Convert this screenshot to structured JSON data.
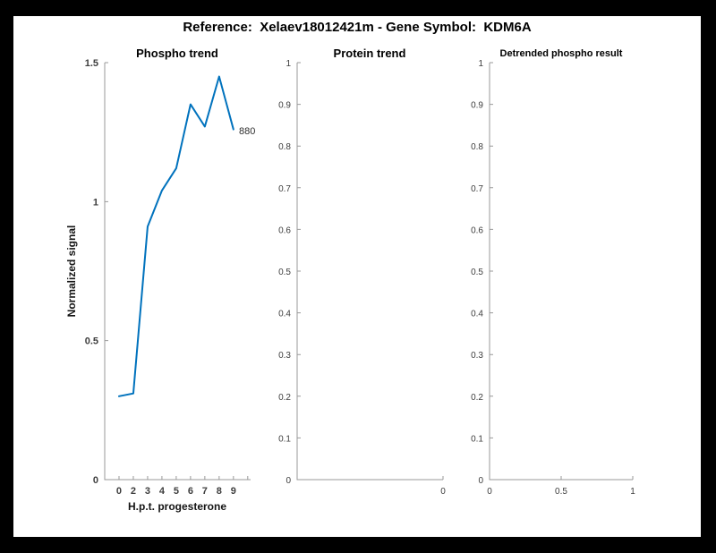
{
  "header": {
    "title": "Reference:  Xelaev18012421m - Gene Symbol:  KDM6A"
  },
  "chart_data": [
    {
      "id": "phospho-trend",
      "type": "line",
      "title": "Phospho trend",
      "xlabel": "H.p.t. progesterone",
      "ylabel": "Normalized signal",
      "line_color": "#0072BD",
      "grid": false,
      "legend": null,
      "xlim": [
        0,
        10.2
      ],
      "ylim": [
        0,
        1.5
      ],
      "x_ticks": {
        "values": [
          1,
          2,
          3,
          4,
          5,
          6,
          7,
          8,
          9,
          10
        ],
        "labels": [
          "0",
          "2",
          "3",
          "4",
          "5",
          "6",
          "7",
          "8",
          "9",
          ""
        ]
      },
      "y_ticks": {
        "values": [
          0,
          0.5,
          1,
          1.5
        ],
        "labels": [
          "0",
          "0.5",
          "1",
          "1.5"
        ]
      },
      "points": {
        "x": [
          1,
          2,
          3,
          4,
          5,
          6,
          7,
          8,
          9
        ],
        "x_labels": [
          "0",
          "2",
          "3",
          "4",
          "5",
          "6",
          "7",
          "8",
          "9"
        ],
        "y": [
          0.3,
          0.31,
          0.91,
          1.04,
          1.12,
          1.35,
          1.27,
          1.45,
          1.26
        ]
      },
      "annotation": "880"
    },
    {
      "id": "protein-trend",
      "type": "line",
      "title": "Protein trend",
      "xlabel": "",
      "ylabel": "",
      "line_color": "#0072BD",
      "grid": false,
      "legend": null,
      "xlim": [
        -1,
        0
      ],
      "ylim": [
        0,
        1
      ],
      "x_ticks": {
        "values": [
          0
        ],
        "labels": [
          "0"
        ]
      },
      "y_ticks": {
        "values": [
          0,
          0.1,
          0.2,
          0.3,
          0.4,
          0.5,
          0.6,
          0.7,
          0.8,
          0.9,
          1
        ],
        "labels": [
          "0",
          "0.1",
          "0.2",
          "0.3",
          "0.4",
          "0.5",
          "0.6",
          "0.7",
          "0.8",
          "0.9",
          "1"
        ]
      },
      "points": {
        "x": [],
        "y": []
      }
    },
    {
      "id": "detrended-phospho-result",
      "type": "line",
      "title": "Detrended phospho result",
      "xlabel": "",
      "ylabel": "",
      "line_color": "#0072BD",
      "grid": false,
      "legend": null,
      "xlim": [
        0,
        1
      ],
      "ylim": [
        0,
        1
      ],
      "x_ticks": {
        "values": [
          0,
          0.5,
          1
        ],
        "labels": [
          "0",
          "0.5",
          "1"
        ]
      },
      "y_ticks": {
        "values": [
          0,
          0.1,
          0.2,
          0.3,
          0.4,
          0.5,
          0.6,
          0.7,
          0.8,
          0.9,
          1
        ],
        "labels": [
          "0",
          "0.1",
          "0.2",
          "0.3",
          "0.4",
          "0.5",
          "0.6",
          "0.7",
          "0.8",
          "0.9",
          "1"
        ]
      },
      "points": {
        "x": [],
        "y": []
      }
    }
  ]
}
